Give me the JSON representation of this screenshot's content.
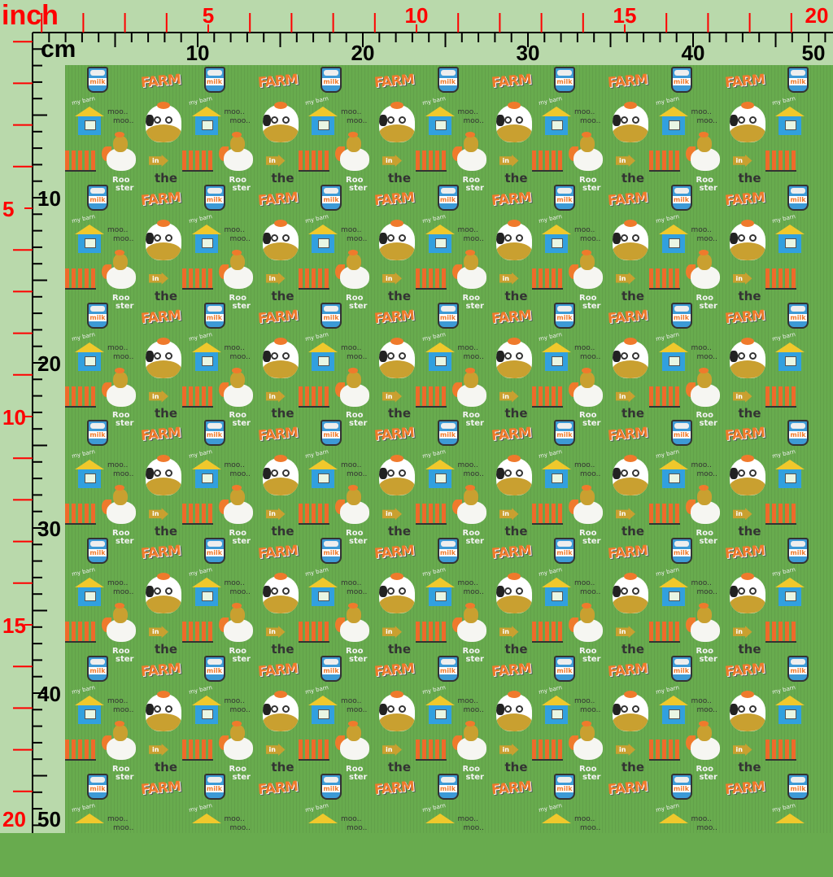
{
  "ruler": {
    "inch_unit": "inch",
    "cm_unit": "cm",
    "inch_labels": [
      "5",
      "10",
      "15",
      "20"
    ],
    "cm_labels": [
      "10",
      "20",
      "30",
      "40",
      "50"
    ],
    "inch_color": "#ff0000",
    "cm_color": "#000000"
  },
  "pattern": {
    "background_color": "#68ab4e",
    "milk": "milk",
    "roo": "Roo",
    "ster": "ster",
    "farm": "FARM",
    "the": "the",
    "my_barn": "my barn",
    "moo1": "moo..",
    "moo2": "moo..",
    "in": "in"
  }
}
